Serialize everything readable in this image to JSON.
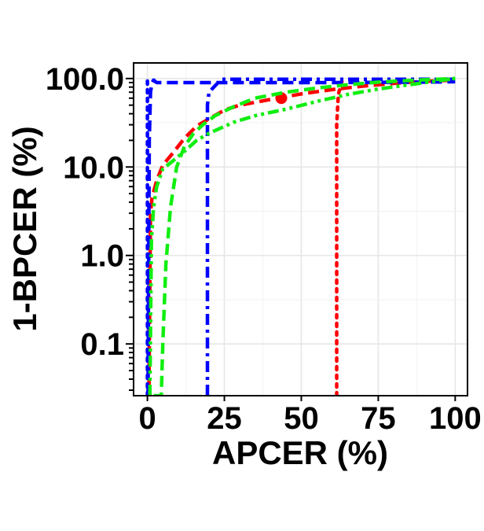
{
  "chart_data": {
    "type": "line",
    "xlabel": "APCER (%)",
    "ylabel": "1-BPCER (%)",
    "x_scale": "linear",
    "y_scale": "log",
    "xlim": [
      -4.5,
      104
    ],
    "ylim": [
      0.026,
      150
    ],
    "x_ticks": [
      0,
      25,
      50,
      75,
      100
    ],
    "x_tick_labels": [
      "0",
      "25",
      "50",
      "75",
      "100"
    ],
    "y_ticks": [
      0.1,
      1,
      10,
      100
    ],
    "y_tick_labels": [
      "0.1",
      "1.0",
      "10.0",
      "100.0"
    ],
    "grid": true,
    "series": [
      {
        "color": "#ff0000",
        "dash": "dashed",
        "points": [
          [
            0.5,
            0.03
          ],
          [
            1,
            3.0
          ],
          [
            1.5,
            4.5
          ],
          [
            3,
            7
          ],
          [
            5,
            10.5
          ],
          [
            8,
            14
          ],
          [
            12,
            21
          ],
          [
            16,
            29
          ],
          [
            20,
            35
          ],
          [
            25,
            44
          ],
          [
            30,
            50
          ],
          [
            40,
            58
          ],
          [
            50,
            67
          ],
          [
            60,
            75
          ],
          [
            70,
            82
          ],
          [
            80,
            88
          ],
          [
            90,
            93
          ],
          [
            100,
            96
          ]
        ]
      },
      {
        "color": "#ff0000",
        "dash": "dotted",
        "points": [
          [
            61.5,
            0.026
          ],
          [
            61.5,
            0.05
          ],
          [
            61.5,
            0.5
          ],
          [
            61.5,
            5
          ],
          [
            61.5,
            30
          ],
          [
            62,
            65
          ],
          [
            63,
            90
          ],
          [
            64,
            99
          ]
        ]
      },
      {
        "color": "#ff0000",
        "marker": "circle",
        "points": [
          [
            43.5,
            60
          ]
        ]
      },
      {
        "color": "#0000ff",
        "dash": "dashed",
        "points": [
          [
            0.2,
            0.026
          ],
          [
            0.6,
            20
          ],
          [
            1,
            70
          ],
          [
            1.5,
            90
          ],
          [
            2,
            96
          ],
          [
            3,
            90
          ],
          [
            10,
            90
          ],
          [
            30,
            90
          ],
          [
            60,
            90
          ],
          [
            90,
            91
          ],
          [
            100,
            92
          ]
        ]
      },
      {
        "color": "#0000ff",
        "dash": "dashdot",
        "points": [
          [
            19.5,
            0.026
          ],
          [
            19.5,
            0.5
          ],
          [
            19.5,
            5
          ],
          [
            19.5,
            30
          ],
          [
            19.5,
            50
          ],
          [
            20,
            70
          ],
          [
            24,
            98
          ],
          [
            50,
            98
          ],
          [
            100,
            98
          ]
        ]
      },
      {
        "color": "#0000ff",
        "dash": "dotted",
        "points": [
          [
            0,
            0.026
          ],
          [
            0,
            100
          ]
        ]
      },
      {
        "color": "#11ee11",
        "dash": "dashed",
        "points": [
          [
            2,
            0.026
          ],
          [
            4.5,
            0.026
          ],
          [
            5,
            0.1
          ],
          [
            6,
            0.8
          ],
          [
            7.5,
            3.5
          ],
          [
            9.5,
            10
          ],
          [
            12,
            17
          ],
          [
            15,
            24
          ],
          [
            18,
            30
          ],
          [
            22,
            38
          ],
          [
            28,
            48
          ],
          [
            35,
            60
          ],
          [
            45,
            70
          ],
          [
            55,
            78
          ],
          [
            65,
            85
          ],
          [
            75,
            91
          ],
          [
            85,
            95
          ],
          [
            100,
            100
          ]
        ]
      },
      {
        "color": "#11ee11",
        "dash": "dashdotdot",
        "points": [
          [
            0.8,
            0.026
          ],
          [
            1.3,
            1.5
          ],
          [
            2,
            3.5
          ],
          [
            3,
            6
          ],
          [
            5,
            9.5
          ],
          [
            8,
            11.5
          ],
          [
            12,
            15
          ],
          [
            16,
            20
          ],
          [
            20,
            24
          ],
          [
            28,
            32
          ],
          [
            35,
            38
          ],
          [
            45,
            45
          ],
          [
            55,
            55
          ],
          [
            65,
            66
          ],
          [
            75,
            76
          ],
          [
            85,
            85
          ],
          [
            100,
            100
          ]
        ]
      }
    ]
  }
}
